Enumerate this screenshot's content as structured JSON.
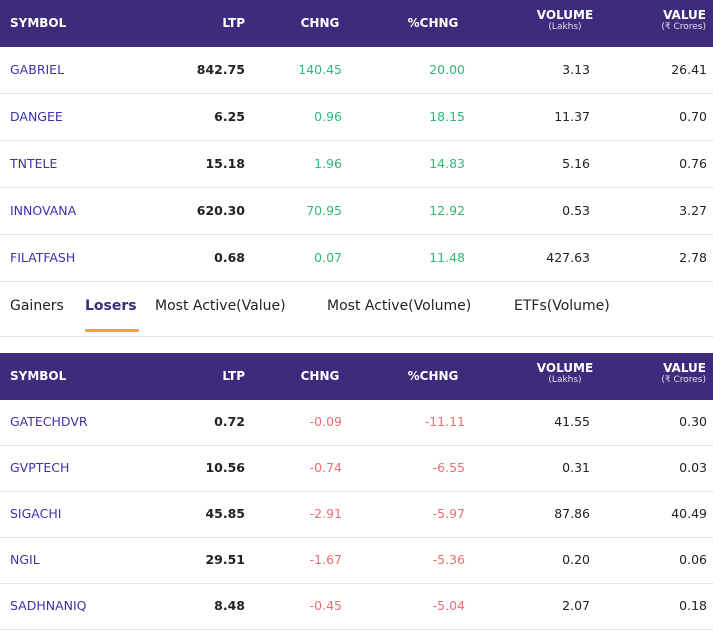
{
  "tables": [
    {
      "header": [
        "SYMBOL",
        "LTP",
        "CHNG",
        "%CHNG",
        {
          "label": "VOLUME",
          "sub": "(Lakhs)"
        },
        {
          "label": "VALUE",
          "sub": "(₹ Crores)"
        }
      ],
      "change_color": "#2fb877",
      "rows": [
        [
          "GABRIEL",
          "842.75",
          "140.45",
          "20.00",
          "3.13",
          "26.41"
        ],
        [
          "DANGEE",
          "6.25",
          "0.96",
          "18.15",
          "11.37",
          "0.70"
        ],
        [
          "TNTELE",
          "15.18",
          "1.96",
          "14.83",
          "5.16",
          "0.76"
        ],
        [
          "INNOVANA",
          "620.30",
          "70.95",
          "12.92",
          "0.53",
          "3.27"
        ],
        [
          "FILATFASH",
          "0.68",
          "0.07",
          "11.48",
          "427.63",
          "2.78"
        ]
      ]
    },
    {
      "header": [
        "SYMBOL",
        "LTP",
        "CHNG",
        "%CHNG",
        {
          "label": "VOLUME",
          "sub": "(Lakhs)"
        },
        {
          "label": "VALUE",
          "sub": "(₹ Crores)"
        }
      ],
      "change_color": "#f26d6d",
      "rows": [
        [
          "GATECHDVR",
          "0.72",
          "-0.09",
          "-11.11",
          "41.55",
          "0.30"
        ],
        [
          "GVPTECH",
          "10.56",
          "-0.74",
          "-6.55",
          "0.31",
          "0.03"
        ],
        [
          "SIGACHI",
          "45.85",
          "-2.91",
          "-5.97",
          "87.86",
          "40.49"
        ],
        [
          "NGIL",
          "29.51",
          "-1.67",
          "-5.36",
          "0.20",
          "0.06"
        ],
        [
          "SADHNANIQ",
          "8.48",
          "-0.45",
          "-5.04",
          "2.07",
          "0.18"
        ]
      ]
    }
  ],
  "tabs": {
    "items": [
      "Gainers",
      "Losers",
      "Most Active(Value)",
      "Most Active(Volume)",
      "ETFs(Volume)"
    ],
    "active": 1
  }
}
